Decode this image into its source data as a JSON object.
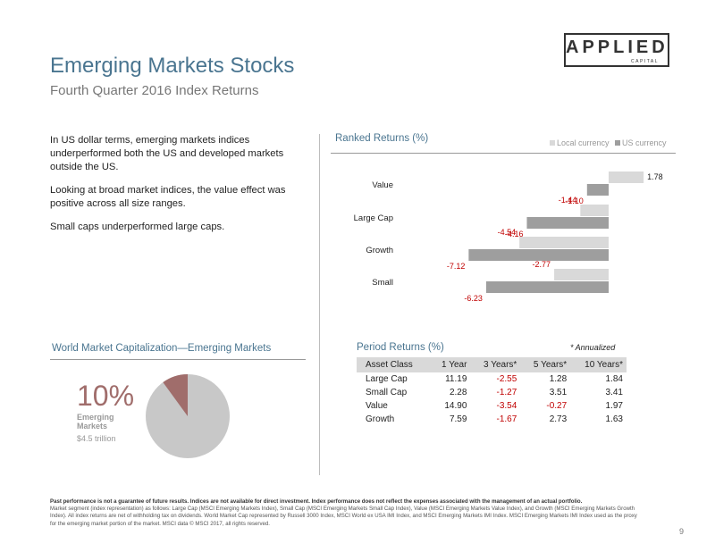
{
  "logo": {
    "main": "APPLIED",
    "sub": "CAPITAL"
  },
  "title": "Emerging Markets Stocks",
  "subtitle": "Fourth Quarter 2016 Index Returns",
  "intro": [
    "In US dollar terms, emerging markets indices underperformed both the US and developed markets outside the US.",
    "Looking at broad market indices, the value effect was positive across all size ranges.",
    "Small caps underperformed large caps."
  ],
  "colors": {
    "local": "#d9d9d9",
    "us": "#9e9e9e",
    "negative": "#c00000",
    "pie_main": "#c8c8c8",
    "pie_em": "#a06d6b"
  },
  "chart_data": [
    {
      "type": "bar",
      "title": "Ranked Returns (%)",
      "orientation": "horizontal",
      "categories": [
        "Value",
        "Large Cap",
        "Growth",
        "Small"
      ],
      "series": [
        {
          "name": "Local currency",
          "values": [
            1.78,
            -1.44,
            -4.54,
            -2.77
          ]
        },
        {
          "name": "US currency",
          "values": [
            -1.1,
            -4.16,
            -7.12,
            -6.23
          ]
        }
      ],
      "xlim": [
        -8,
        2
      ],
      "legend": "top-right",
      "grid": false
    },
    {
      "type": "pie",
      "title": "World Market Capitalization—Emerging Markets",
      "slices": [
        {
          "label": "Emerging Markets",
          "value": 10
        },
        {
          "label": "",
          "value": 90
        }
      ],
      "highlight": {
        "percent": "10%",
        "label": "Emerging Markets",
        "value": "$4.5 trillion"
      }
    },
    {
      "type": "table",
      "title": "Period Returns (%)",
      "note": "* Annualized",
      "columns": [
        "Asset Class",
        "1 Year",
        "3 Years*",
        "5 Years*",
        "10 Years*"
      ],
      "rows": [
        [
          "Large Cap",
          "11.19",
          "-2.55",
          "1.28",
          "1.84"
        ],
        [
          "Small Cap",
          "2.28",
          "-1.27",
          "3.51",
          "3.41"
        ],
        [
          "Value",
          "14.90",
          "-3.54",
          "-0.27",
          "1.97"
        ],
        [
          "Growth",
          "7.59",
          "-1.67",
          "2.73",
          "1.63"
        ]
      ]
    }
  ],
  "disclaimer": {
    "bold": "Past performance is not a guarantee of future results. Indices are not available for direct investment. Index performance does not reflect the expenses associated with the management of an actual portfolio.",
    "text": "Market segment (index representation) as follows: Large Cap (MSCI Emerging Markets Index), Small Cap (MSCI Emerging Markets Small Cap Index), Value (MSCI Emerging Markets Value Index), and Growth (MSCI Emerging Markets Growth Index). All index returns are net of withholding tax on dividends. World Market Cap represented by Russell 3000 Index, MSCI World ex USA IMI Index, and MSCI Emerging Markets IMI Index. MSCI Emerging Markets IMI Index used as the proxy for the emerging market portion of the market. MSCI data © MSCI 2017, all rights reserved."
  },
  "page_number": "9"
}
